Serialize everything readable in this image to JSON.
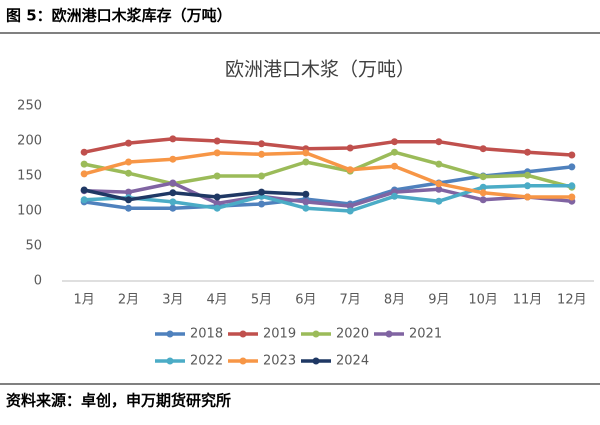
{
  "header": "图 5：欧洲港口木浆库存（万吨）",
  "footer": "资料来源：卓创，申万期货研究所",
  "chart_data": {
    "type": "line",
    "title": "欧洲港口木浆（万吨）",
    "categories": [
      "1月",
      "2月",
      "3月",
      "4月",
      "5月",
      "6月",
      "7月",
      "8月",
      "9月",
      "10月",
      "11月",
      "12月"
    ],
    "ylim": [
      0,
      250
    ],
    "yticks": [
      0,
      50,
      100,
      150,
      200,
      250
    ],
    "grid": false,
    "series": [
      {
        "name": "2018",
        "color": "#4f81bd",
        "values": [
          113,
          104,
          104,
          107,
          110,
          117,
          110,
          130,
          140,
          150,
          156,
          163
        ]
      },
      {
        "name": "2019",
        "color": "#c0504d",
        "values": [
          184,
          197,
          203,
          200,
          196,
          189,
          190,
          199,
          199,
          189,
          184,
          180
        ]
      },
      {
        "name": "2020",
        "color": "#9bbb59",
        "values": [
          167,
          154,
          139,
          150,
          150,
          170,
          157,
          184,
          167,
          149,
          151,
          134
        ]
      },
      {
        "name": "2021",
        "color": "#8064a2",
        "values": [
          129,
          127,
          140,
          111,
          121,
          113,
          107,
          127,
          131,
          116,
          120,
          114
        ]
      },
      {
        "name": "2022",
        "color": "#4bacc6",
        "values": [
          116,
          119,
          113,
          104,
          121,
          104,
          100,
          121,
          114,
          134,
          136,
          136
        ]
      },
      {
        "name": "2023",
        "color": "#f79646",
        "values": [
          153,
          170,
          174,
          183,
          181,
          183,
          159,
          164,
          139,
          126,
          120,
          120
        ]
      },
      {
        "name": "2024",
        "color": "#1f3864",
        "values": [
          130,
          116,
          126,
          120,
          127,
          124,
          null,
          null,
          null,
          null,
          null,
          null
        ]
      }
    ]
  }
}
